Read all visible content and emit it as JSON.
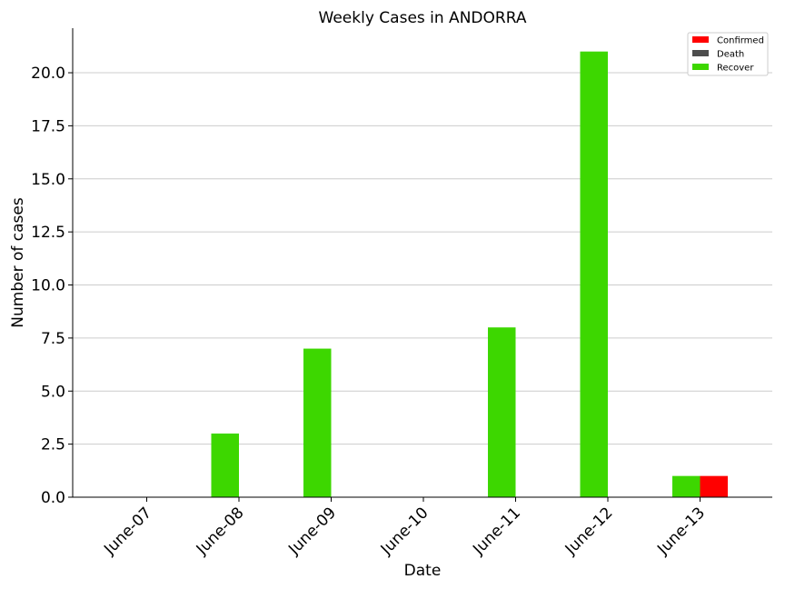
{
  "chart_data": {
    "type": "bar",
    "title": "Weekly Cases in ANDORRA",
    "xlabel": "Date",
    "ylabel": "Number of cases",
    "categories": [
      "June-07",
      "June-08",
      "June-09",
      "June-10",
      "June-11",
      "June-12",
      "June-13"
    ],
    "series": [
      {
        "name": "Confirmed",
        "color": "#ff0000",
        "values": [
          0,
          0,
          0,
          0,
          0,
          0,
          1
        ]
      },
      {
        "name": "Death",
        "color": "#4d4d4d",
        "values": [
          0,
          0,
          0,
          0,
          0,
          0,
          0
        ]
      },
      {
        "name": "Recover",
        "color": "#3dd700",
        "values": [
          0,
          3,
          7,
          0,
          8,
          21,
          1
        ]
      }
    ],
    "ylim": [
      0,
      22.1
    ],
    "yticks": [
      "0.0",
      "2.5",
      "5.0",
      "7.5",
      "10.0",
      "12.5",
      "15.0",
      "17.5",
      "20.0"
    ],
    "grid": "horizontal",
    "legend_position": "top-right"
  }
}
